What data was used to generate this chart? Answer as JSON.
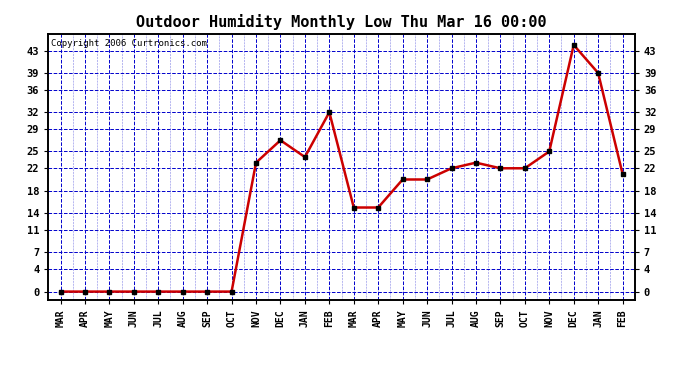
{
  "title": "Outdoor Humidity Monthly Low Thu Mar 16 00:00",
  "copyright": "Copyright 2006 Curtronics.com",
  "categories": [
    "MAR",
    "APR",
    "MAY",
    "JUN",
    "JUL",
    "AUG",
    "SEP",
    "OCT",
    "NOV",
    "DEC",
    "JAN",
    "FEB",
    "MAR",
    "APR",
    "MAY",
    "JUN",
    "JUL",
    "AUG",
    "SEP",
    "OCT",
    "NOV",
    "DEC",
    "JAN",
    "FEB"
  ],
  "values": [
    0,
    0,
    0,
    0,
    0,
    0,
    0,
    0,
    23,
    27,
    24,
    32,
    15,
    15,
    20,
    20,
    22,
    23,
    22,
    22,
    25,
    44,
    39,
    21
  ],
  "line_color": "#cc0000",
  "marker_color": "#000000",
  "bg_color": "#ffffff",
  "plot_bg_color": "#ffffff",
  "grid_color": "#0000cc",
  "title_fontsize": 11,
  "yticks": [
    0,
    4,
    7,
    11,
    14,
    18,
    22,
    25,
    29,
    32,
    36,
    39,
    43
  ],
  "ylim": [
    -1.5,
    46
  ],
  "xlim": [
    -0.5,
    23.5
  ]
}
